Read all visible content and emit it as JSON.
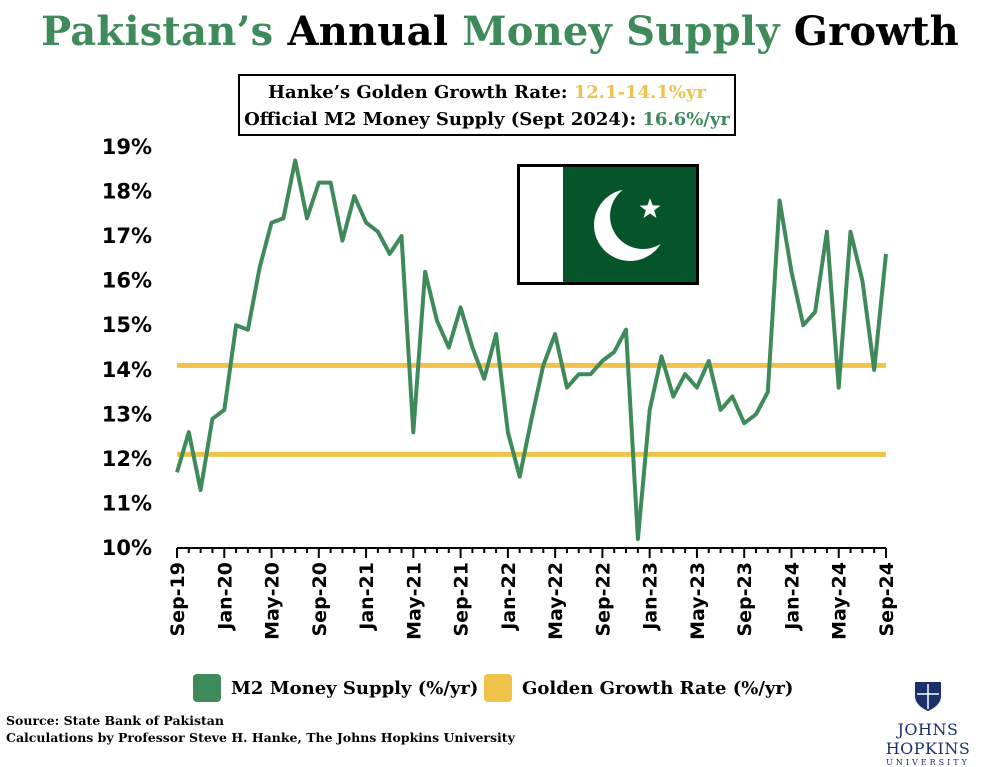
{
  "title": {
    "part1": "Pakistan’s",
    "part2": "Annual",
    "part3": "Money Supply",
    "part4": "Growth"
  },
  "infobox": {
    "line1_label": "Hanke’s Golden Growth Rate:",
    "line1_value": "12.1-14.1%yr",
    "line2_label": "Official M2 Money Supply (Sept 2024):",
    "line2_value": "16.6%/yr"
  },
  "colors": {
    "m2": "#3f8a5a",
    "gold": "#efc24a",
    "flag_green": "#06542a"
  },
  "legend": {
    "m2": "M2 Money Supply (%/yr)",
    "gold": "Golden Growth Rate (%/yr)"
  },
  "source": {
    "line1": "Source: State Bank of Pakistan",
    "line2": "Calculations by Professor Steve H. Hanke, The Johns Hopkins University"
  },
  "logo": {
    "name": "JOHNS HOPKINS",
    "sub": "UNIVERSITY"
  },
  "chart_data": {
    "type": "line",
    "title": "Pakistan’s Annual Money Supply Growth",
    "ylim": [
      10,
      19
    ],
    "yticks": [
      "10%",
      "11%",
      "12%",
      "13%",
      "14%",
      "15%",
      "16%",
      "17%",
      "18%",
      "19%"
    ],
    "xtick_labels": [
      "Sep-19",
      "Jan-20",
      "May-20",
      "Sep-20",
      "Jan-21",
      "May-21",
      "Sep-21",
      "Jan-22",
      "May-22",
      "Sep-22",
      "Jan-23",
      "May-23",
      "Sep-23",
      "Jan-24",
      "May-24",
      "Sep-24"
    ],
    "n_months": 61,
    "series": [
      {
        "name": "M2 Money Supply (%/yr)",
        "type": "line",
        "values": [
          11.7,
          12.6,
          11.3,
          12.9,
          13.1,
          15.0,
          14.9,
          16.3,
          17.3,
          17.4,
          18.7,
          17.4,
          18.2,
          18.2,
          16.9,
          17.9,
          17.3,
          17.1,
          16.6,
          17.0,
          12.6,
          16.2,
          15.1,
          14.5,
          15.4,
          14.5,
          13.8,
          14.8,
          12.6,
          11.6,
          12.9,
          14.1,
          14.8,
          13.6,
          13.9,
          13.9,
          14.2,
          14.4,
          14.9,
          10.2,
          13.1,
          14.3,
          13.4,
          13.9,
          13.6,
          14.2,
          13.1,
          13.4,
          12.8,
          13.0,
          13.5,
          17.8,
          16.2,
          15.0,
          15.3,
          17.1,
          13.6,
          17.1,
          16.0,
          14.0,
          16.6
        ],
        "value_labels": []
      },
      {
        "name": "Golden Growth Rate (%/yr)",
        "type": "hlines",
        "values": [
          12.1,
          14.1
        ]
      }
    ]
  }
}
